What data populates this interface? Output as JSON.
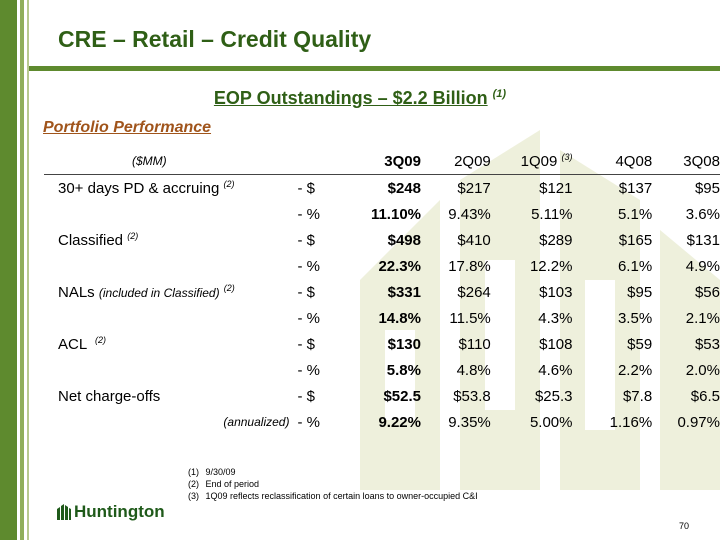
{
  "header": {
    "title": "CRE – Retail – Credit Quality",
    "subtitle": "EOP Outstandings – $2.2 Billion",
    "subtitle_note": "(1)",
    "section": "Portfolio Performance"
  },
  "table": {
    "units_label": "($MM)",
    "columns": [
      "3Q09",
      "2Q09",
      "1Q09",
      "4Q08",
      "3Q08"
    ],
    "column_note_1q09": "(3)",
    "rows": [
      {
        "label": "30+ days PD & accruing",
        "note": "(2)",
        "unit": "- $",
        "values": [
          "$248",
          "$217",
          "$121",
          "$137",
          "$95"
        ]
      },
      {
        "label": "",
        "note": "",
        "unit": "- %",
        "values": [
          "11.10%",
          "9.43%",
          "5.11%",
          "5.1%",
          "3.6%"
        ]
      },
      {
        "label": "Classified",
        "note": "(2)",
        "unit": "- $",
        "values": [
          "$498",
          "$410",
          "$289",
          "$165",
          "$131"
        ]
      },
      {
        "label": "",
        "note": "",
        "unit": "- %",
        "values": [
          "22.3%",
          "17.8%",
          "12.2%",
          "6.1%",
          "4.9%"
        ]
      },
      {
        "label": "NALs",
        "sublabel": "(included in Classified)",
        "note": "(2)",
        "unit": "- $",
        "values": [
          "$331",
          "$264",
          "$103",
          "$95",
          "$56"
        ]
      },
      {
        "label": "",
        "note": "",
        "unit": "- %",
        "values": [
          "14.8%",
          "11.5%",
          "4.3%",
          "3.5%",
          "2.1%"
        ]
      },
      {
        "label": "ACL",
        "note": "(2)",
        "unit": "- $",
        "values": [
          "$130",
          "$110",
          "$108",
          "$59",
          "$53"
        ]
      },
      {
        "label": "",
        "note": "",
        "unit": "- %",
        "values": [
          "5.8%",
          "4.8%",
          "4.6%",
          "2.2%",
          "2.0%"
        ]
      },
      {
        "label": "Net charge-offs",
        "note": "",
        "unit": "- $",
        "values": [
          "$52.5",
          "$53.8",
          "$25.3",
          "$7.8",
          "$6.5"
        ]
      },
      {
        "label": "(annualized)",
        "note": "",
        "unit": "- %",
        "values": [
          "9.22%",
          "9.35%",
          "5.00%",
          "1.16%",
          "0.97%"
        ]
      }
    ]
  },
  "footnotes": [
    {
      "num": "(1)",
      "text": "9/30/09"
    },
    {
      "num": "(2)",
      "text": "End of period"
    },
    {
      "num": "(3)",
      "text": "1Q09 reflects reclassification of certain loans to owner-occupied C&I"
    }
  ],
  "logo_text": "Huntington",
  "page_number": "70",
  "colors": {
    "brand_green": "#2f5f16",
    "bar_green": "#5e8a2e",
    "section_orange": "#a0541b",
    "watermark": "#eef0dc"
  }
}
